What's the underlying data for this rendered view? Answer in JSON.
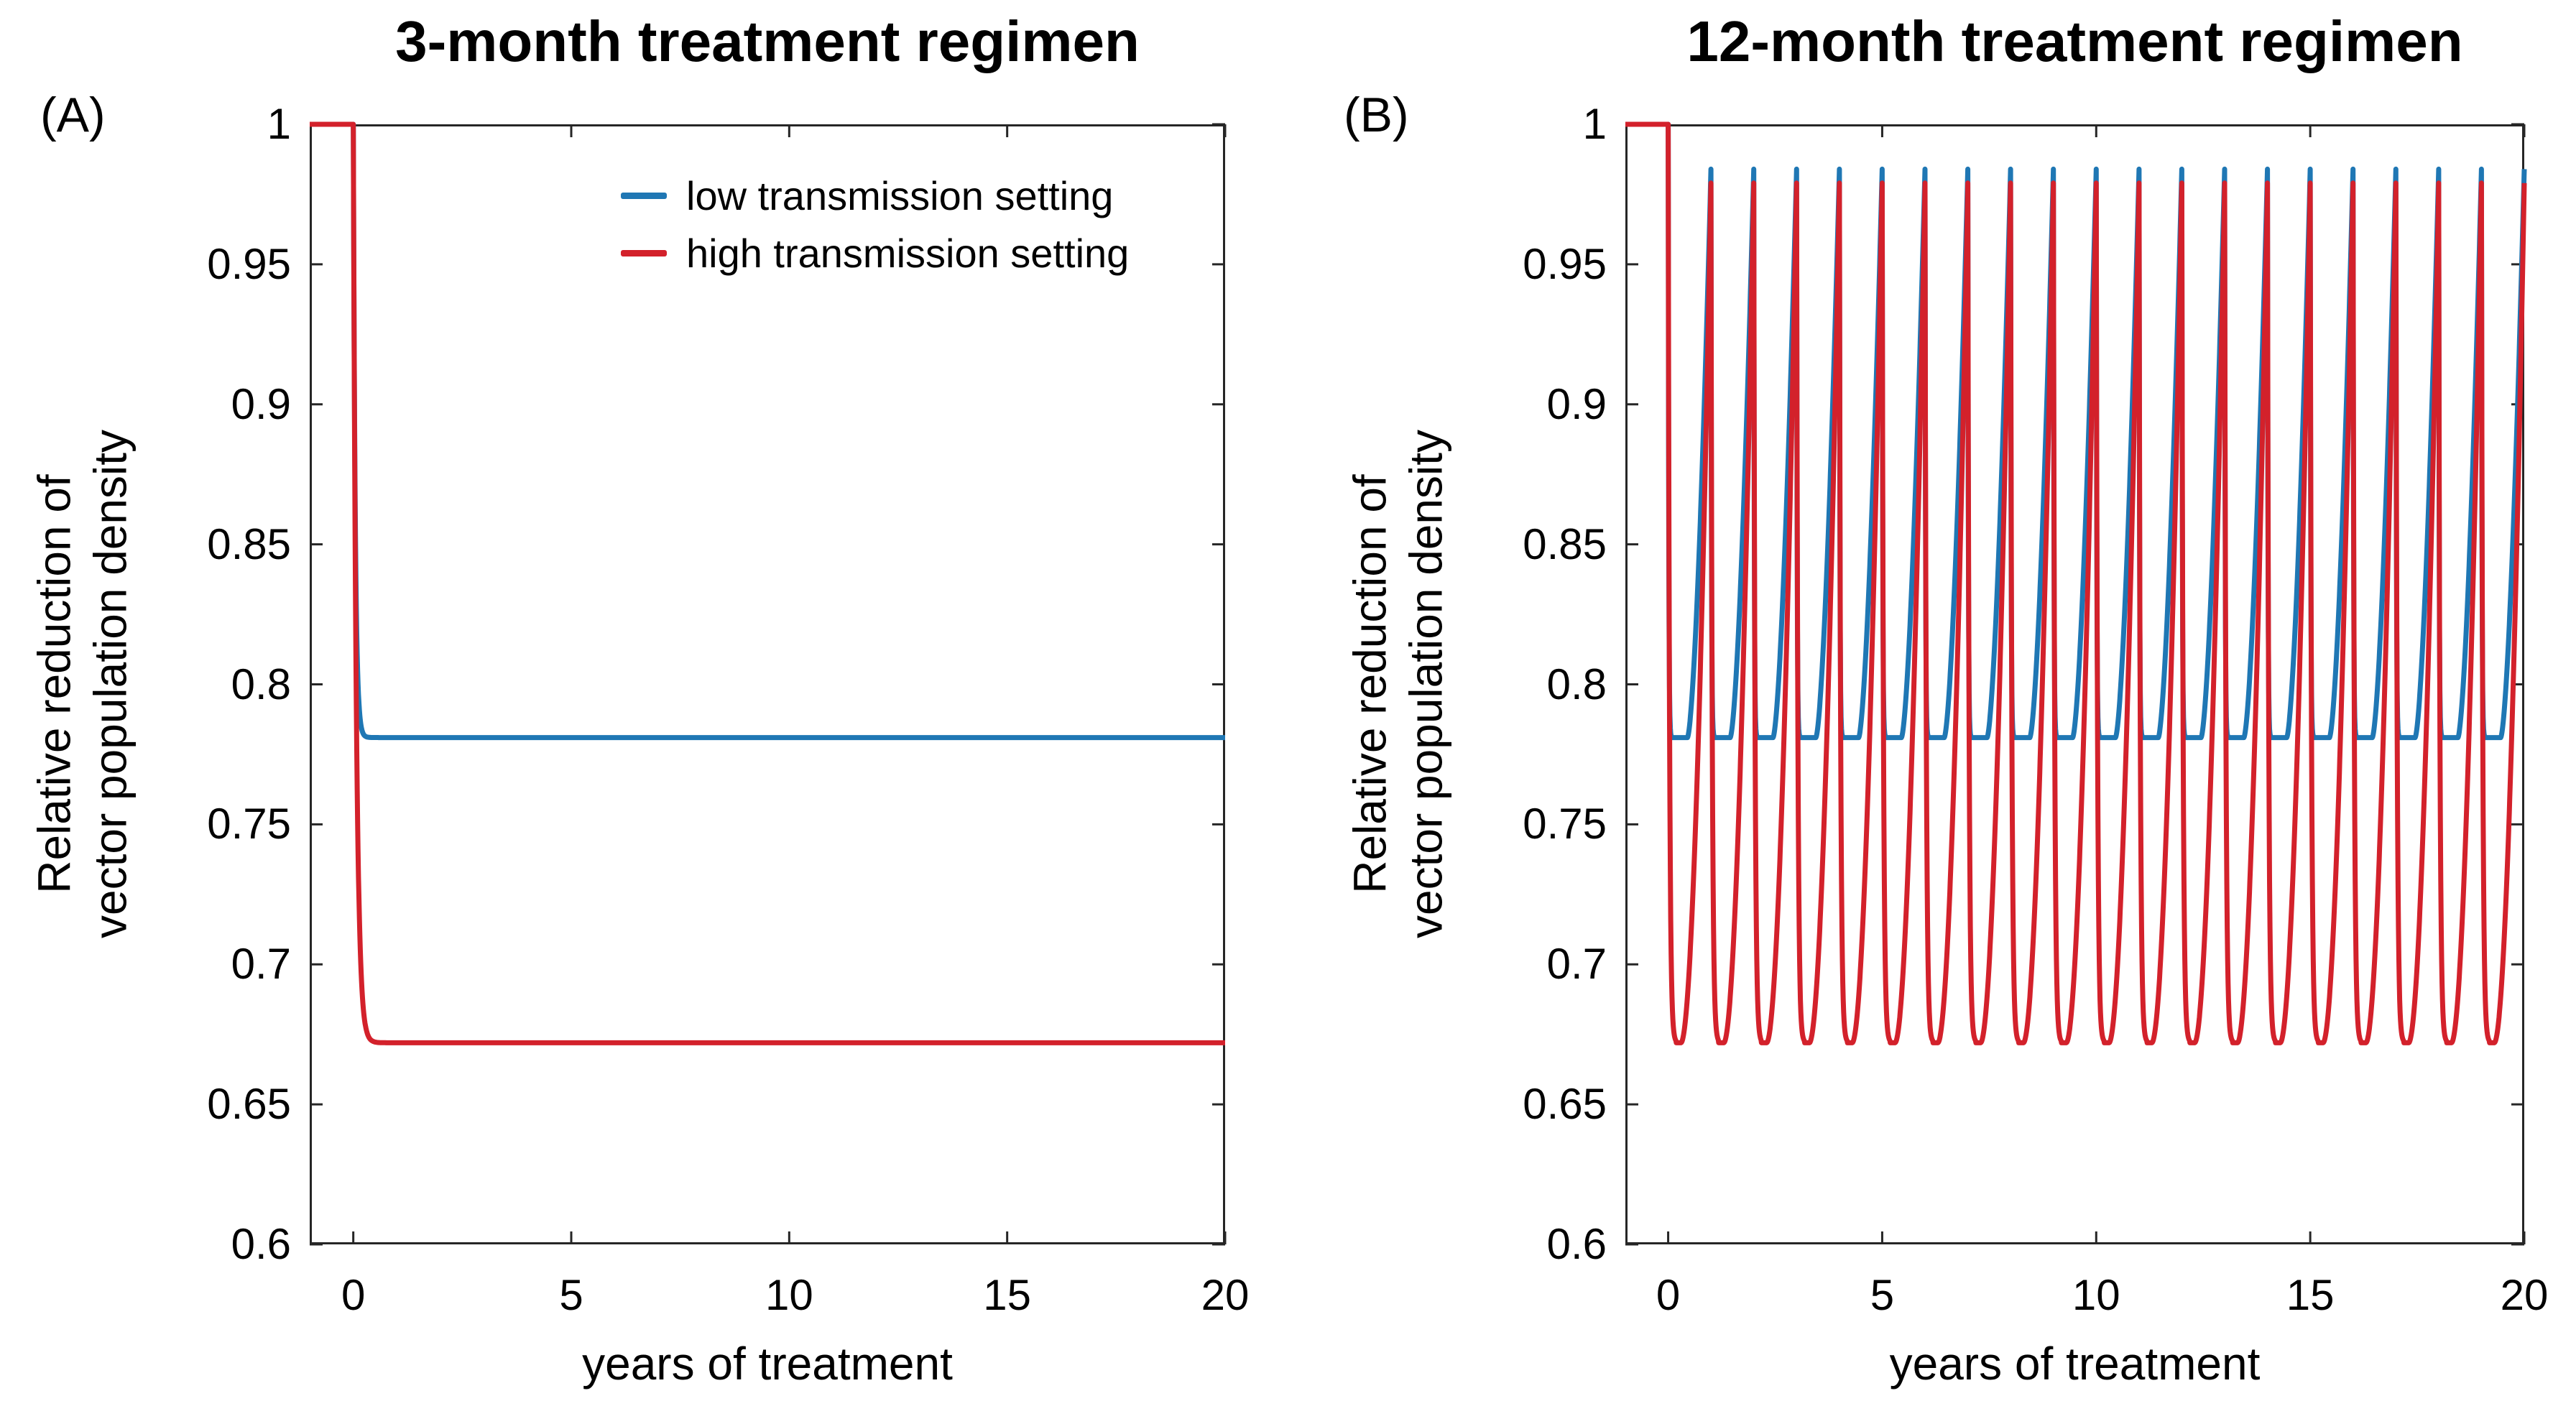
{
  "figure": {
    "background": "#ffffff",
    "axis_color": "#262626",
    "text_color": "#000000"
  },
  "chart_data": {
    "type": "line",
    "layout": "two-panel",
    "panels": [
      {
        "panel_label": "(A)",
        "title": "3-month treatment regimen",
        "xlabel": "years of treatment",
        "ylabel_lines": [
          "Relative reduction of",
          "vector population density"
        ],
        "xlim": [
          -1,
          20
        ],
        "ylim": [
          0.6,
          1.0
        ],
        "xticks": {
          "values": [
            0,
            5,
            10,
            15,
            20
          ],
          "labels": [
            "0",
            "5",
            "10",
            "15",
            "20"
          ]
        },
        "yticks": {
          "values": [
            1,
            0.95,
            0.9,
            0.85,
            0.8,
            0.75,
            0.7,
            0.65,
            0.6
          ],
          "labels": [
            "1",
            "0.95",
            "0.9",
            "0.85",
            "0.8",
            "0.75",
            "0.7",
            "0.65",
            "0.6"
          ]
        },
        "grid": false,
        "box": true,
        "show_legend": true,
        "legend_position": "upper-right-inside",
        "series": [
          {
            "name": "low transmission setting",
            "color": "#1f77b4",
            "model": {
              "type": "decay",
              "pre_treatment_value": 1.0,
              "treatment_start": 0,
              "steady_state": 0.781,
              "tau_years": 0.045
            }
          },
          {
            "name": "high transmission setting",
            "color": "#d3212b",
            "model": {
              "type": "decay",
              "pre_treatment_value": 1.0,
              "treatment_start": 0,
              "steady_state": 0.672,
              "tau_years": 0.07
            }
          }
        ]
      },
      {
        "panel_label": "(B)",
        "title": "12-month treatment regimen",
        "xlabel": "years of treatment",
        "ylabel_lines": [
          "Relative reduction of",
          "vector population density"
        ],
        "xlim": [
          -1,
          20
        ],
        "ylim": [
          0.6,
          1.0
        ],
        "xticks": {
          "values": [
            0,
            5,
            10,
            15,
            20
          ],
          "labels": [
            "0",
            "5",
            "10",
            "15",
            "20"
          ]
        },
        "yticks": {
          "values": [
            1,
            0.95,
            0.9,
            0.85,
            0.8,
            0.75,
            0.7,
            0.65,
            0.6
          ],
          "labels": [
            "1",
            "0.95",
            "0.9",
            "0.85",
            "0.8",
            "0.75",
            "0.7",
            "0.65",
            "0.6"
          ]
        },
        "grid": false,
        "box": true,
        "show_legend": false,
        "series": [
          {
            "name": "low transmission setting",
            "color": "#1f77b4",
            "model": {
              "type": "annual-cycle",
              "pre_treatment_value": 1.0,
              "treatment_start": 0,
              "period_years": 1,
              "treatments_at_years": "0..19",
              "trough": 0.781,
              "peak": 0.984,
              "drop_duration": 0.08,
              "drop_tau": 0.012,
              "recovery_start": 0.45,
              "recovery_exponent": 1.6
            }
          },
          {
            "name": "high transmission setting",
            "color": "#d3212b",
            "model": {
              "type": "annual-cycle",
              "pre_treatment_value": 1.0,
              "treatment_start": 0,
              "period_years": 1,
              "treatments_at_years": "0..19",
              "trough": 0.672,
              "peak": 0.979,
              "drop_duration": 0.18,
              "drop_tau": 0.03,
              "recovery_start": 0.3,
              "recovery_exponent": 1.9
            }
          }
        ]
      }
    ]
  }
}
